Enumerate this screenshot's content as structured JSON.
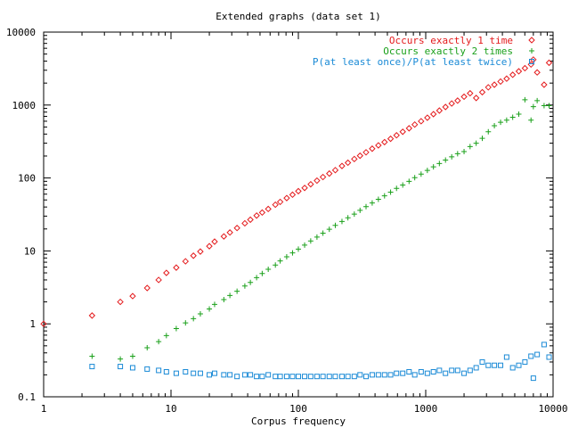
{
  "chart_data": {
    "type": "scatter",
    "title": "Extended graphs (data set 1)",
    "xlabel": "Corpus frequency",
    "ylabel": "",
    "xscale": "log",
    "yscale": "log",
    "xlim": [
      1,
      10000
    ],
    "ylim": [
      0.1,
      10000
    ],
    "grid": false,
    "legend_position": "top-right",
    "x_ticks": [
      1,
      10,
      100,
      1000,
      10000
    ],
    "x_tick_labels": [
      "1",
      "10",
      "100",
      "1000",
      "10000"
    ],
    "y_ticks": [
      0.1,
      1,
      10,
      100,
      1000,
      10000
    ],
    "y_tick_labels": [
      "0.1",
      "1",
      "10",
      "100",
      "1000",
      "10000"
    ],
    "series": [
      {
        "name": "Occurs exactly 1 time",
        "color": "#e41a1c",
        "marker": "diamond",
        "x": [
          1,
          2.4,
          4,
          5,
          6.5,
          8,
          9.2,
          11,
          13,
          15,
          17,
          20,
          22,
          26,
          29,
          33,
          38,
          42,
          47,
          52,
          58,
          66,
          72,
          81,
          90,
          100,
          112,
          125,
          140,
          156,
          175,
          195,
          220,
          245,
          275,
          305,
          340,
          380,
          425,
          475,
          530,
          590,
          660,
          740,
          820,
          920,
          1030,
          1150,
          1280,
          1430,
          1600,
          1780,
          2000,
          2230,
          2490,
          2780,
          3100,
          3460,
          3870,
          4320,
          4820,
          5380,
          6010,
          6710,
          7000,
          7500,
          8500,
          9300
        ],
        "values": [
          1.0,
          1.3,
          2.0,
          2.4,
          3.1,
          4.0,
          5.0,
          5.9,
          7.2,
          8.6,
          9.8,
          11.6,
          13.4,
          15.8,
          17.9,
          20.6,
          23.9,
          26.8,
          30.5,
          33.6,
          37.6,
          43.0,
          47.0,
          53.0,
          59.0,
          66.0,
          73.0,
          82.0,
          92.0,
          103.0,
          115.0,
          128.0,
          146.0,
          162.0,
          182.0,
          202.0,
          225.0,
          252.0,
          280.0,
          310.0,
          345.0,
          385.0,
          430.0,
          480.0,
          540.0,
          600.0,
          670.0,
          750.0,
          840.0,
          940.0,
          1050.0,
          1150.0,
          1300.0,
          1450.0,
          1250.0,
          1500.0,
          1750.0,
          1900.0,
          2100.0,
          2300.0,
          2600.0,
          2900.0,
          3200.0,
          3600.0,
          4200.0,
          2800.0,
          1900.0,
          3800.0
        ]
      },
      {
        "name": "Occurs exactly 2 times",
        "color": "#1aa01a",
        "marker": "plus",
        "x": [
          2.4,
          4,
          5,
          6.5,
          8,
          9.2,
          11,
          13,
          15,
          17,
          20,
          22,
          26,
          29,
          33,
          38,
          42,
          47,
          52,
          58,
          66,
          72,
          81,
          90,
          100,
          112,
          125,
          140,
          156,
          175,
          195,
          220,
          245,
          275,
          305,
          340,
          380,
          425,
          475,
          530,
          590,
          660,
          740,
          820,
          920,
          1030,
          1150,
          1280,
          1430,
          1600,
          1780,
          2000,
          2230,
          2490,
          2780,
          3100,
          3460,
          3870,
          4320,
          4820,
          5380,
          6010,
          6710,
          7000,
          7500,
          8500,
          9300
        ],
        "values": [
          0.36,
          0.33,
          0.36,
          0.47,
          0.57,
          0.69,
          0.86,
          1.03,
          1.18,
          1.37,
          1.6,
          1.85,
          2.15,
          2.45,
          2.8,
          3.3,
          3.7,
          4.3,
          4.9,
          5.6,
          6.4,
          7.3,
          8.3,
          9.4,
          10.6,
          12.0,
          13.7,
          15.5,
          17.5,
          19.8,
          22.4,
          25.3,
          28.5,
          32.0,
          36.0,
          40.5,
          45.5,
          51.0,
          57.0,
          64.0,
          72.0,
          80.0,
          90.0,
          101.0,
          113.0,
          127.0,
          142.0,
          158.0,
          176.0,
          195.0,
          215.0,
          230.0,
          270.0,
          300.0,
          350.0,
          430.0,
          520.0,
          580.0,
          620.0,
          680.0,
          750.0,
          1180.0,
          620.0,
          950.0,
          1150.0,
          980.0,
          980.0
        ]
      },
      {
        "name": "P(at least once)/P(at least twice)",
        "color": "#1a8ad6",
        "marker": "square",
        "x": [
          2.4,
          4,
          5,
          6.5,
          8,
          9.2,
          11,
          13,
          15,
          17,
          20,
          22,
          26,
          29,
          33,
          38,
          42,
          47,
          52,
          58,
          66,
          72,
          81,
          90,
          100,
          112,
          125,
          140,
          156,
          175,
          195,
          220,
          245,
          275,
          305,
          340,
          380,
          425,
          475,
          530,
          590,
          660,
          740,
          820,
          920,
          1030,
          1150,
          1280,
          1430,
          1600,
          1780,
          2000,
          2230,
          2490,
          2780,
          3100,
          3460,
          3870,
          4320,
          4820,
          5380,
          6010,
          6710,
          7000,
          7500,
          8500,
          9300
        ],
        "values": [
          0.26,
          0.26,
          0.25,
          0.24,
          0.23,
          0.22,
          0.21,
          0.22,
          0.21,
          0.21,
          0.2,
          0.21,
          0.2,
          0.2,
          0.19,
          0.2,
          0.2,
          0.19,
          0.19,
          0.2,
          0.19,
          0.19,
          0.19,
          0.19,
          0.19,
          0.19,
          0.19,
          0.19,
          0.19,
          0.19,
          0.19,
          0.19,
          0.19,
          0.19,
          0.2,
          0.19,
          0.2,
          0.2,
          0.2,
          0.2,
          0.21,
          0.21,
          0.22,
          0.2,
          0.22,
          0.21,
          0.22,
          0.23,
          0.21,
          0.23,
          0.23,
          0.21,
          0.23,
          0.25,
          0.3,
          0.27,
          0.27,
          0.27,
          0.35,
          0.25,
          0.27,
          0.3,
          0.36,
          0.18,
          0.38,
          0.52,
          0.35
        ]
      }
    ]
  }
}
